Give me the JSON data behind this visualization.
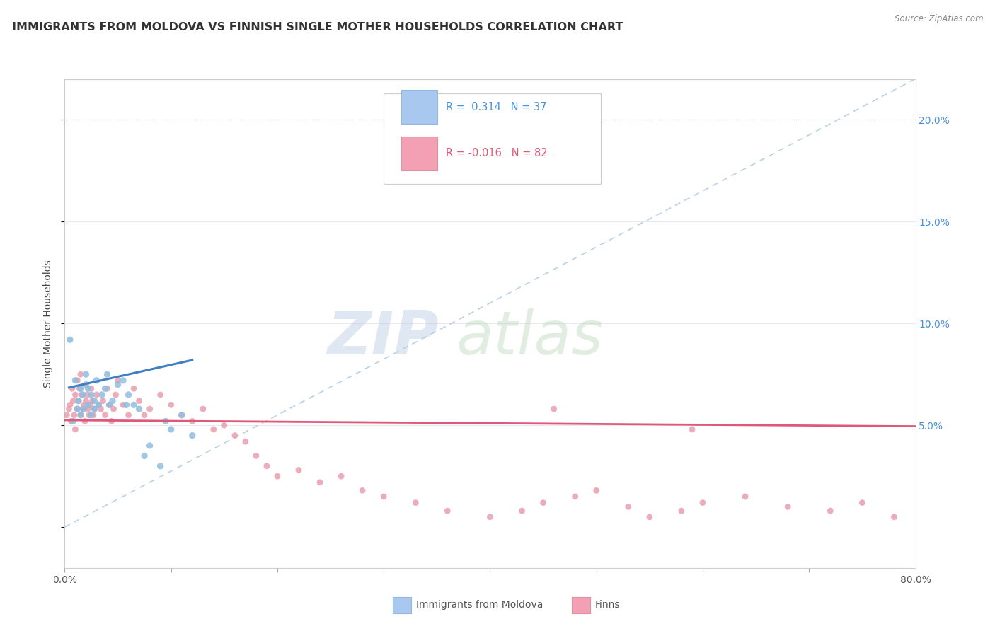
{
  "title": "IMMIGRANTS FROM MOLDOVA VS FINNISH SINGLE MOTHER HOUSEHOLDS CORRELATION CHART",
  "source_text": "Source: ZipAtlas.com",
  "ylabel": "Single Mother Households",
  "watermark_zip": "ZIP",
  "watermark_atlas": "atlas",
  "xlim": [
    0.0,
    0.8
  ],
  "ylim": [
    -0.02,
    0.22
  ],
  "ylim_display": [
    0.0,
    0.22
  ],
  "xticks": [
    0.0,
    0.1,
    0.2,
    0.3,
    0.4,
    0.5,
    0.6,
    0.7,
    0.8
  ],
  "xticklabels_show": [
    "0.0%",
    "80.0%"
  ],
  "xticklabels_hide": [
    "",
    "",
    "",
    "",
    "",
    "",
    "",
    ""
  ],
  "yticks_right": [
    0.05,
    0.1,
    0.15,
    0.2
  ],
  "yticklabels_right": [
    "5.0%",
    "10.0%",
    "15.0%",
    "20.0%"
  ],
  "scatter_moldova": {
    "x": [
      0.005,
      0.008,
      0.01,
      0.012,
      0.013,
      0.015,
      0.015,
      0.017,
      0.018,
      0.02,
      0.02,
      0.022,
      0.022,
      0.025,
      0.025,
      0.028,
      0.028,
      0.03,
      0.032,
      0.035,
      0.038,
      0.04,
      0.042,
      0.045,
      0.05,
      0.055,
      0.058,
      0.06,
      0.065,
      0.07,
      0.075,
      0.08,
      0.09,
      0.095,
      0.1,
      0.11,
      0.12
    ],
    "y": [
      0.092,
      0.052,
      0.072,
      0.058,
      0.062,
      0.068,
      0.055,
      0.065,
      0.058,
      0.07,
      0.075,
      0.06,
      0.068,
      0.055,
      0.065,
      0.058,
      0.062,
      0.072,
      0.06,
      0.065,
      0.068,
      0.075,
      0.06,
      0.062,
      0.07,
      0.072,
      0.06,
      0.065,
      0.06,
      0.058,
      0.035,
      0.04,
      0.03,
      0.052,
      0.048,
      0.055,
      0.045
    ],
    "color": "#90bde0",
    "size": 45,
    "alpha": 0.85
  },
  "scatter_finns": {
    "x": [
      0.002,
      0.004,
      0.005,
      0.006,
      0.007,
      0.008,
      0.009,
      0.01,
      0.01,
      0.012,
      0.012,
      0.013,
      0.014,
      0.015,
      0.015,
      0.016,
      0.017,
      0.018,
      0.019,
      0.02,
      0.021,
      0.022,
      0.023,
      0.024,
      0.025,
      0.026,
      0.027,
      0.028,
      0.03,
      0.032,
      0.034,
      0.036,
      0.038,
      0.04,
      0.042,
      0.044,
      0.046,
      0.048,
      0.05,
      0.055,
      0.06,
      0.065,
      0.07,
      0.075,
      0.08,
      0.09,
      0.1,
      0.11,
      0.12,
      0.13,
      0.14,
      0.15,
      0.16,
      0.17,
      0.18,
      0.19,
      0.2,
      0.22,
      0.24,
      0.26,
      0.28,
      0.3,
      0.33,
      0.36,
      0.4,
      0.43,
      0.45,
      0.48,
      0.5,
      0.53,
      0.55,
      0.58,
      0.6,
      0.64,
      0.68,
      0.72,
      0.75,
      0.78,
      0.39,
      0.42,
      0.46,
      0.59
    ],
    "y": [
      0.055,
      0.058,
      0.06,
      0.052,
      0.068,
      0.062,
      0.055,
      0.065,
      0.048,
      0.072,
      0.058,
      0.062,
      0.068,
      0.055,
      0.075,
      0.065,
      0.058,
      0.06,
      0.052,
      0.062,
      0.065,
      0.058,
      0.055,
      0.06,
      0.068,
      0.062,
      0.055,
      0.058,
      0.065,
      0.06,
      0.058,
      0.062,
      0.055,
      0.068,
      0.06,
      0.052,
      0.058,
      0.065,
      0.072,
      0.06,
      0.055,
      0.068,
      0.062,
      0.055,
      0.058,
      0.065,
      0.06,
      0.055,
      0.052,
      0.058,
      0.048,
      0.05,
      0.045,
      0.042,
      0.035,
      0.03,
      0.025,
      0.028,
      0.022,
      0.025,
      0.018,
      0.015,
      0.012,
      0.008,
      0.005,
      0.008,
      0.012,
      0.015,
      0.018,
      0.01,
      0.005,
      0.008,
      0.012,
      0.015,
      0.01,
      0.008,
      0.012,
      0.005,
      0.19,
      0.195,
      0.058,
      0.048
    ],
    "color": "#e898a8",
    "size": 40,
    "alpha": 0.8
  },
  "line_moldova": {
    "x0": 0.004,
    "y0": 0.0685,
    "x1": 0.12,
    "y1": 0.082,
    "color": "#4080c0",
    "linewidth": 2.2
  },
  "line_finns": {
    "x0": 0.0,
    "y0": 0.0525,
    "x1": 0.8,
    "y1": 0.0495,
    "color": "#e05878",
    "linewidth": 2.0
  },
  "diag_line": {
    "x": [
      0.0,
      0.8
    ],
    "y": [
      0.0,
      0.22
    ],
    "color": "#b8d0e8",
    "linewidth": 1.2,
    "linestyle": "--"
  },
  "grid_h_color": "#e8e8f0",
  "grid_v_color": "#e8e8f0",
  "background_color": "#ffffff",
  "title_fontsize": 11.5,
  "axis_label_fontsize": 10,
  "tick_fontsize": 10,
  "legend_r1": "R =  0.314   N = 37",
  "legend_r2": "R = -0.016   N = 82",
  "legend_color1": "#4a90d9",
  "legend_color2": "#e05878",
  "legend_box_color1": "#a8c8f0",
  "legend_box_color2": "#f4a0b4",
  "bottom_label1": "Immigrants from Moldova",
  "bottom_label2": "Finns"
}
